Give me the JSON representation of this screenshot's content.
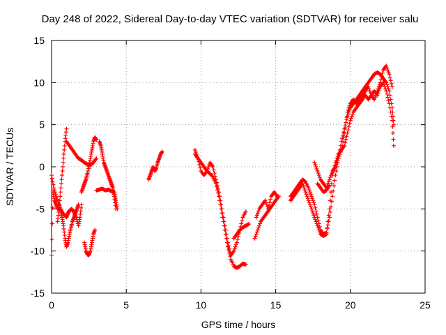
{
  "chart_data": {
    "type": "scatter",
    "title": "Day 248 of 2022, Sidereal Day-to-day VTEC variation (SDTVAR) for receiver salu",
    "xlabel": "GPS time / hours",
    "ylabel": "SDTVAR / TECUs",
    "xlim": [
      0,
      25
    ],
    "ylim": [
      -15,
      15
    ],
    "xticks": [
      0,
      5,
      10,
      15,
      20,
      25
    ],
    "yticks": [
      -15,
      -10,
      -5,
      0,
      5,
      10,
      15
    ],
    "grid": true,
    "marker": "+",
    "color": "#ff0000",
    "series": [
      {
        "name": "seg1a",
        "x": [
          0.0,
          0.1,
          0.2,
          0.3,
          0.4,
          0.5,
          0.6,
          0.7,
          0.8,
          0.9,
          1.0,
          1.1,
          1.2,
          1.3,
          1.4,
          1.5,
          1.6,
          1.7,
          1.8
        ],
        "y": [
          -10.5,
          -3.0,
          -4.0,
          -4.5,
          -5.0,
          -4.8,
          -5.2,
          -6.0,
          -7.0,
          -8.5,
          -9.5,
          -9.0,
          -8.0,
          -7.2,
          -6.5,
          -6.0,
          -5.5,
          -5.0,
          -4.5
        ]
      },
      {
        "name": "seg1b",
        "x": [
          0.0,
          0.15,
          0.3,
          0.45,
          0.6,
          0.75,
          0.9,
          1.0,
          1.1,
          1.2,
          1.35,
          1.5,
          1.65,
          1.8,
          1.9,
          2.0
        ],
        "y": [
          -1.0,
          -2.5,
          -3.5,
          -4.2,
          -5.0,
          -5.5,
          -5.8,
          -6.0,
          -5.5,
          -5.2,
          -5.0,
          -5.4,
          -6.0,
          -7.0,
          -6.0,
          -4.5
        ]
      },
      {
        "name": "seg1c",
        "x": [
          0.4,
          0.5,
          0.6,
          0.7,
          0.8,
          0.9,
          1.0
        ],
        "y": [
          -6.5,
          -5.0,
          -3.0,
          -1.0,
          1.0,
          3.0,
          4.5
        ]
      },
      {
        "name": "seg1d",
        "x": [
          1.0,
          1.2,
          1.4,
          1.6,
          1.8,
          2.0,
          2.2,
          2.4,
          2.6,
          2.8,
          3.0
        ],
        "y": [
          3.0,
          2.5,
          2.0,
          1.5,
          1.0,
          0.8,
          0.5,
          0.3,
          0.2,
          0.5,
          1.0
        ]
      },
      {
        "name": "seg1e",
        "x": [
          2.0,
          2.1,
          2.2,
          2.3,
          2.4,
          2.5,
          2.6,
          2.7,
          2.8,
          2.9,
          3.0
        ],
        "y": [
          -3.0,
          -2.5,
          -2.0,
          -1.5,
          -0.8,
          0.0,
          1.0,
          2.0,
          3.0,
          3.5,
          3.2
        ]
      },
      {
        "name": "seg1f",
        "x": [
          2.2,
          2.3,
          2.4,
          2.5,
          2.6,
          2.7,
          2.8,
          2.9
        ],
        "y": [
          -9.0,
          -10.0,
          -10.4,
          -10.5,
          -10.0,
          -9.0,
          -8.0,
          -7.5
        ]
      },
      {
        "name": "seg1g",
        "x": [
          3.0,
          3.2,
          3.4,
          3.6,
          3.8,
          4.0,
          4.2,
          4.3,
          4.4
        ],
        "y": [
          -2.8,
          -2.7,
          -2.6,
          -2.8,
          -2.7,
          -2.9,
          -3.0,
          -4.0,
          -5.0
        ]
      },
      {
        "name": "seg1h",
        "x": [
          3.2,
          3.3,
          3.4,
          3.5,
          3.6,
          3.7,
          3.8,
          3.9,
          4.0,
          4.1,
          4.2,
          4.3
        ],
        "y": [
          3.0,
          2.5,
          1.5,
          0.5,
          0.0,
          -0.5,
          -1.0,
          -1.5,
          -2.0,
          -2.5,
          -3.5,
          -5.0
        ]
      },
      {
        "name": "seg2",
        "x": [
          6.5,
          6.6,
          6.7,
          6.8,
          6.9,
          7.0,
          7.1,
          7.2,
          7.3,
          7.4
        ],
        "y": [
          -1.5,
          -1.0,
          -0.5,
          0.0,
          -0.5,
          -0.2,
          0.5,
          1.0,
          1.5,
          1.8
        ]
      },
      {
        "name": "seg3a",
        "x": [
          9.6,
          9.8,
          10.0,
          10.2,
          10.4,
          10.6,
          10.8,
          11.0,
          11.2,
          11.4,
          11.6,
          11.8,
          12.0,
          12.2,
          12.4,
          12.6,
          12.8,
          13.0
        ],
        "y": [
          1.5,
          1.0,
          0.5,
          0.0,
          -0.5,
          -0.8,
          -1.2,
          -2.0,
          -3.5,
          -5.5,
          -7.5,
          -9.5,
          -11.0,
          -11.8,
          -12.0,
          -11.8,
          -11.5,
          -11.6
        ]
      },
      {
        "name": "seg3b",
        "x": [
          9.6,
          9.8,
          10.0,
          10.2,
          10.4,
          10.6,
          10.8,
          11.0,
          11.2,
          11.4,
          11.6,
          11.8,
          12.0,
          12.2,
          12.4,
          12.6,
          12.8,
          13.0
        ],
        "y": [
          2.0,
          1.0,
          -0.5,
          -1.0,
          -0.5,
          0.5,
          0.0,
          -1.5,
          -3.0,
          -5.0,
          -7.0,
          -9.0,
          -10.5,
          -10.0,
          -9.0,
          -7.5,
          -6.0,
          -5.3
        ]
      },
      {
        "name": "seg3c",
        "x": [
          12.2,
          12.4,
          12.6,
          12.8,
          13.0,
          13.2
        ],
        "y": [
          -8.5,
          -8.0,
          -7.5,
          -7.2,
          -7.0,
          -6.8
        ]
      },
      {
        "name": "seg4",
        "x": [
          13.6,
          13.8,
          14.0,
          14.2,
          14.4,
          14.6,
          14.8,
          15.0,
          15.2
        ],
        "y": [
          -8.5,
          -7.5,
          -6.5,
          -6.0,
          -5.5,
          -5.0,
          -4.5,
          -4.0,
          -3.5
        ]
      },
      {
        "name": "seg4b",
        "x": [
          13.7,
          13.9,
          14.1,
          14.3,
          14.5,
          14.7,
          14.9,
          15.1
        ],
        "y": [
          -6.0,
          -5.0,
          -4.5,
          -4.0,
          -5.0,
          -3.5,
          -3.0,
          -3.5
        ]
      },
      {
        "name": "seg5a",
        "x": [
          16.0,
          16.2,
          16.4,
          16.6,
          16.8,
          17.0,
          17.2,
          17.4,
          17.6,
          17.8,
          18.0,
          18.2,
          18.4,
          18.6,
          18.8,
          19.0,
          19.2,
          19.4,
          19.6,
          19.8,
          20.0,
          20.2,
          20.4,
          20.6,
          20.8,
          21.0,
          21.2,
          21.4,
          21.6,
          21.8,
          22.0,
          22.2,
          22.4,
          22.6,
          22.8,
          22.9
        ],
        "y": [
          -3.5,
          -3.0,
          -2.5,
          -2.0,
          -1.5,
          -1.8,
          -2.5,
          -3.5,
          -4.5,
          -6.0,
          -7.5,
          -8.0,
          -7.8,
          -6.0,
          -3.5,
          -1.0,
          1.0,
          3.0,
          4.5,
          6.0,
          7.0,
          7.5,
          8.0,
          8.5,
          9.0,
          9.5,
          10.0,
          10.5,
          11.0,
          11.2,
          11.0,
          10.5,
          10.0,
          9.0,
          7.0,
          5.0
        ]
      },
      {
        "name": "seg5b",
        "x": [
          16.0,
          16.2,
          16.4,
          16.6,
          16.8,
          17.0,
          17.2,
          17.4,
          17.6,
          17.8,
          18.0,
          18.2,
          18.4,
          18.6,
          18.8,
          19.0,
          19.2,
          19.4,
          19.6,
          19.8,
          20.0,
          20.2,
          20.4,
          20.6,
          20.8,
          21.0,
          21.2,
          21.4,
          21.6,
          21.8,
          22.0,
          22.2,
          22.4,
          22.6,
          22.8,
          22.9
        ],
        "y": [
          -4.0,
          -3.5,
          -3.0,
          -2.5,
          -2.0,
          -3.0,
          -4.0,
          -5.0,
          -6.0,
          -7.0,
          -8.0,
          -8.2,
          -8.0,
          -5.0,
          -1.0,
          0.5,
          1.5,
          2.0,
          2.5,
          4.0,
          5.5,
          6.5,
          7.0,
          7.5,
          8.0,
          8.5,
          8.0,
          8.5,
          9.0,
          8.5,
          9.5,
          10.0,
          9.0,
          7.5,
          5.5,
          2.5
        ]
      },
      {
        "name": "seg5c",
        "x": [
          17.6,
          17.8,
          18.0,
          18.2,
          18.4,
          18.6,
          18.8,
          19.0,
          19.2,
          19.4,
          19.6,
          19.8,
          20.0,
          20.2,
          20.4,
          20.6,
          20.8,
          21.0,
          21.2,
          21.4,
          21.6,
          21.8,
          22.0,
          22.2,
          22.4,
          22.6,
          22.8
        ],
        "y": [
          0.5,
          -0.5,
          -1.5,
          -2.0,
          -2.5,
          -1.5,
          -0.5,
          0.0,
          1.0,
          2.0,
          4.0,
          6.5,
          7.5,
          8.0,
          7.5,
          8.0,
          8.5,
          9.0,
          9.5,
          8.5,
          8.0,
          9.0,
          10.0,
          11.5,
          12.0,
          11.0,
          9.5
        ]
      },
      {
        "name": "seg5d",
        "x": [
          17.8,
          18.0,
          18.2,
          18.4,
          18.6
        ],
        "y": [
          -2.0,
          -2.5,
          -3.0,
          -2.8,
          -2.2
        ]
      }
    ]
  }
}
